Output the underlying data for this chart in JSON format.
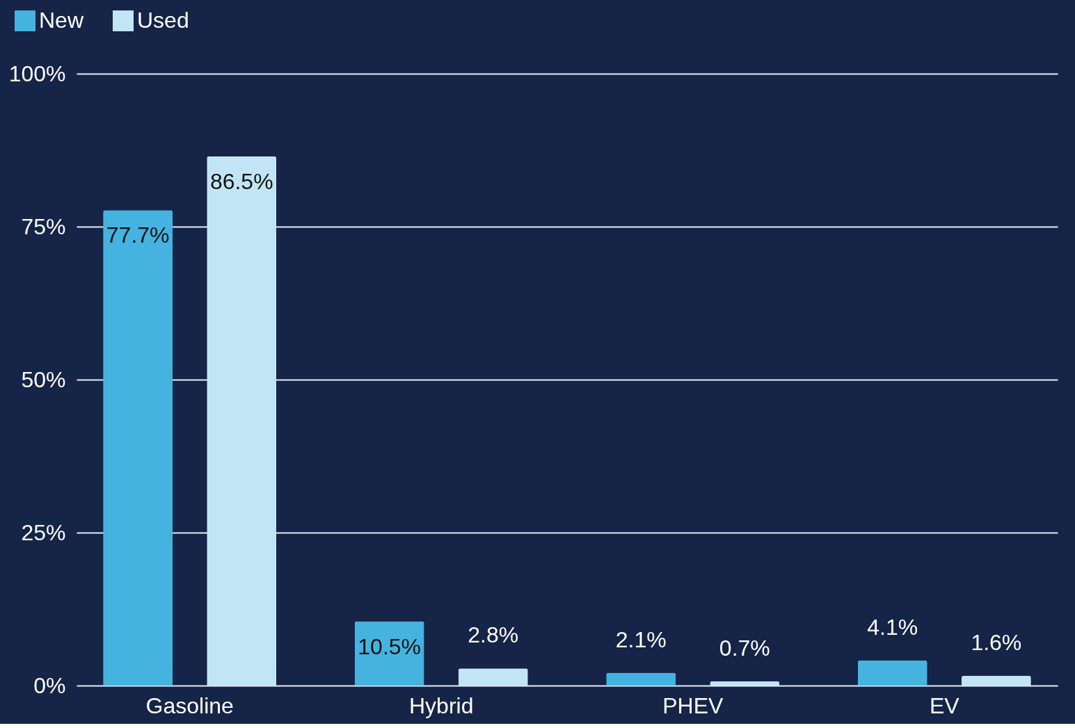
{
  "chart_data": {
    "type": "bar",
    "categories": [
      "Gasoline",
      "Hybrid",
      "PHEV",
      "EV"
    ],
    "series": [
      {
        "name": "New",
        "color": "#45b3e0",
        "values": [
          77.7,
          10.5,
          2.1,
          4.1
        ],
        "value_labels": [
          "77.7%",
          "10.5%",
          "2.1%",
          "4.1%"
        ]
      },
      {
        "name": "Used",
        "color": "#c2e5f5",
        "values": [
          86.5,
          2.8,
          0.7,
          1.6
        ],
        "value_labels": [
          "86.5%",
          "2.8%",
          "0.7%",
          "1.6%"
        ]
      }
    ],
    "ylim": [
      0,
      100
    ],
    "yticks": [
      {
        "value": 0,
        "label": "0%"
      },
      {
        "value": 25,
        "label": "25%"
      },
      {
        "value": 50,
        "label": "50%"
      },
      {
        "value": 75,
        "label": "75%"
      },
      {
        "value": 100,
        "label": "100%"
      }
    ],
    "grid": "y",
    "legend": "top left"
  }
}
